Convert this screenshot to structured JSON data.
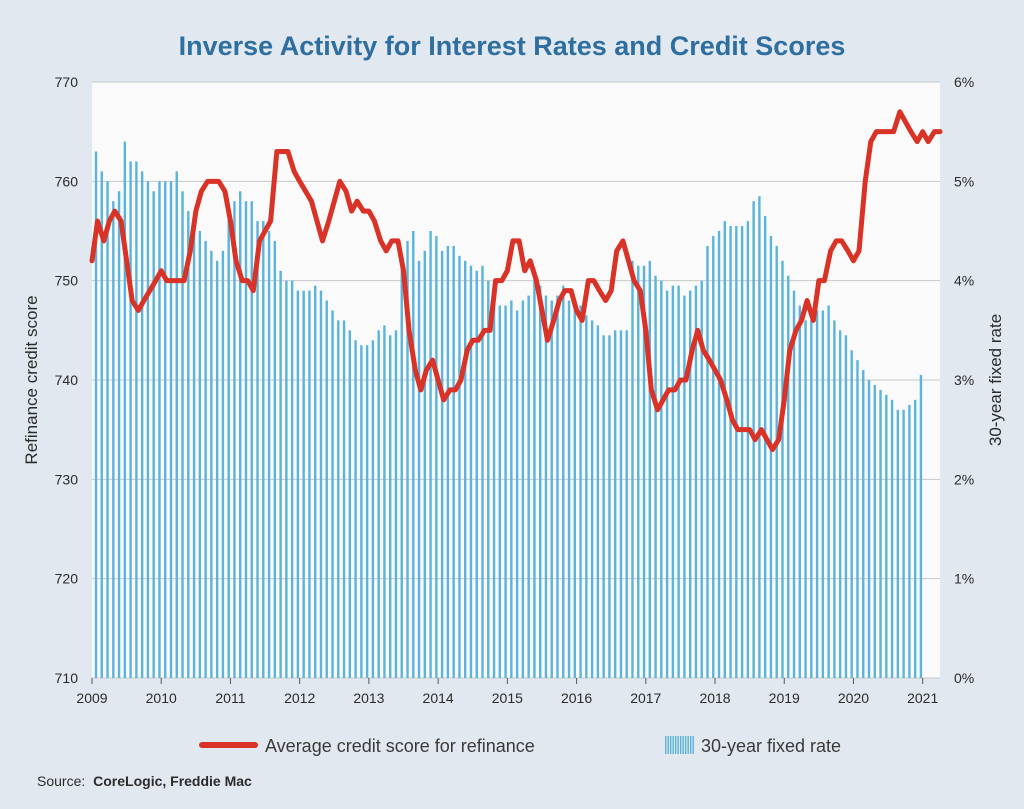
{
  "colors": {
    "background": "#e2e8f0",
    "plot_background": "#fafafa",
    "title": "#2e6fa0",
    "bar": "#5ab4dc",
    "line": "#d93226",
    "grid": "#c8c8c8"
  },
  "source": {
    "label": "Source:",
    "value": "CoreLogic, Freddie Mac"
  },
  "legend": [
    {
      "key": "line",
      "label": "Average credit score for refinance"
    },
    {
      "key": "bar",
      "label": "30-year fixed rate"
    }
  ],
  "chart_data": {
    "type": "bar",
    "title": "Inverse Activity for Interest Rates and Credit Scores",
    "xlabel": "",
    "ylabel": "Refinance credit score",
    "y2label": "30-year fixed rate",
    "ylim": [
      710,
      770
    ],
    "y_ticks": [
      710,
      720,
      730,
      740,
      750,
      760,
      770
    ],
    "y2lim": [
      0,
      6
    ],
    "y2_ticks": [
      0,
      1,
      2,
      3,
      4,
      5,
      6
    ],
    "y2_tick_labels": [
      "0%",
      "1%",
      "2%",
      "3%",
      "4%",
      "5%",
      "6%"
    ],
    "x_ticks": [
      2009,
      2010,
      2011,
      2012,
      2013,
      2014,
      2015,
      2016,
      2017,
      2018,
      2019,
      2020,
      2021
    ],
    "x_range": [
      2009.0,
      2021.25
    ],
    "grid": true,
    "legend_position": "bottom",
    "series": [
      {
        "name": "30-year fixed rate",
        "type": "bar",
        "axis": "right",
        "unit": "%",
        "start": "2009-01",
        "frequency": "monthly",
        "values": [
          5.3,
          5.1,
          5.0,
          4.8,
          4.9,
          5.4,
          5.2,
          5.2,
          5.1,
          5.0,
          4.9,
          5.0,
          5.0,
          5.0,
          5.1,
          4.9,
          4.7,
          4.6,
          4.5,
          4.4,
          4.3,
          4.2,
          4.3,
          4.7,
          4.8,
          4.9,
          4.8,
          4.8,
          4.6,
          4.6,
          4.5,
          4.4,
          4.1,
          4.0,
          4.0,
          3.9,
          3.9,
          3.9,
          3.95,
          3.9,
          3.8,
          3.7,
          3.6,
          3.6,
          3.5,
          3.4,
          3.35,
          3.35,
          3.4,
          3.5,
          3.55,
          3.45,
          3.5,
          4.2,
          4.4,
          4.5,
          4.2,
          4.3,
          4.5,
          4.45,
          4.3,
          4.35,
          4.35,
          4.25,
          4.2,
          4.15,
          4.1,
          4.15,
          4.0,
          3.9,
          3.75,
          3.75,
          3.8,
          3.7,
          3.8,
          3.85,
          4.05,
          3.95,
          3.85,
          3.8,
          3.85,
          3.95,
          3.8,
          3.7,
          3.75,
          3.65,
          3.6,
          3.55,
          3.45,
          3.45,
          3.5,
          3.5,
          3.5,
          4.2,
          4.15,
          4.15,
          4.2,
          4.05,
          4.0,
          3.9,
          3.95,
          3.95,
          3.85,
          3.9,
          3.95,
          4.0,
          4.35,
          4.45,
          4.5,
          4.6,
          4.55,
          4.55,
          4.55,
          4.6,
          4.8,
          4.85,
          4.65,
          4.45,
          4.35,
          4.2,
          4.05,
          3.9,
          3.75,
          3.6,
          3.6,
          3.7,
          3.7,
          3.75,
          3.6,
          3.5,
          3.45,
          3.3,
          3.2,
          3.1,
          3.0,
          2.95,
          2.9,
          2.85,
          2.8,
          2.7,
          2.7,
          2.75,
          2.8,
          3.05
        ]
      },
      {
        "name": "Average credit score for refinance",
        "type": "line",
        "axis": "left",
        "points": [
          [
            2009.0,
            752
          ],
          [
            2009.08,
            756
          ],
          [
            2009.17,
            754
          ],
          [
            2009.25,
            756
          ],
          [
            2009.33,
            757
          ],
          [
            2009.42,
            756
          ],
          [
            2009.5,
            752
          ],
          [
            2009.58,
            748
          ],
          [
            2009.67,
            747
          ],
          [
            2009.75,
            748
          ],
          [
            2009.92,
            750
          ],
          [
            2010.0,
            751
          ],
          [
            2010.08,
            750
          ],
          [
            2010.33,
            750
          ],
          [
            2010.42,
            753
          ],
          [
            2010.5,
            757
          ],
          [
            2010.58,
            759
          ],
          [
            2010.67,
            760
          ],
          [
            2010.83,
            760
          ],
          [
            2010.92,
            759
          ],
          [
            2011.0,
            756
          ],
          [
            2011.08,
            752
          ],
          [
            2011.17,
            750
          ],
          [
            2011.25,
            750
          ],
          [
            2011.33,
            749
          ],
          [
            2011.42,
            754
          ],
          [
            2011.5,
            755
          ],
          [
            2011.58,
            756
          ],
          [
            2011.67,
            763
          ],
          [
            2011.83,
            763
          ],
          [
            2011.92,
            761
          ],
          [
            2012.0,
            760
          ],
          [
            2012.17,
            758
          ],
          [
            2012.25,
            756
          ],
          [
            2012.33,
            754
          ],
          [
            2012.42,
            756
          ],
          [
            2012.58,
            760
          ],
          [
            2012.67,
            759
          ],
          [
            2012.75,
            757
          ],
          [
            2012.83,
            758
          ],
          [
            2012.92,
            757
          ],
          [
            2013.0,
            757
          ],
          [
            2013.08,
            756
          ],
          [
            2013.17,
            754
          ],
          [
            2013.25,
            753
          ],
          [
            2013.33,
            754
          ],
          [
            2013.42,
            754
          ],
          [
            2013.5,
            751
          ],
          [
            2013.58,
            745
          ],
          [
            2013.67,
            741
          ],
          [
            2013.75,
            739
          ],
          [
            2013.83,
            741
          ],
          [
            2013.92,
            742
          ],
          [
            2014.0,
            740
          ],
          [
            2014.08,
            738
          ],
          [
            2014.17,
            739
          ],
          [
            2014.25,
            739
          ],
          [
            2014.33,
            740
          ],
          [
            2014.42,
            743
          ],
          [
            2014.5,
            744
          ],
          [
            2014.58,
            744
          ],
          [
            2014.67,
            745
          ],
          [
            2014.75,
            745
          ],
          [
            2014.83,
            750
          ],
          [
            2014.92,
            750
          ],
          [
            2015.0,
            751
          ],
          [
            2015.08,
            754
          ],
          [
            2015.17,
            754
          ],
          [
            2015.25,
            751
          ],
          [
            2015.33,
            752
          ],
          [
            2015.42,
            750
          ],
          [
            2015.5,
            747
          ],
          [
            2015.58,
            744
          ],
          [
            2015.67,
            746
          ],
          [
            2015.75,
            748
          ],
          [
            2015.83,
            749
          ],
          [
            2015.92,
            749
          ],
          [
            2016.0,
            747
          ],
          [
            2016.08,
            746
          ],
          [
            2016.17,
            750
          ],
          [
            2016.25,
            750
          ],
          [
            2016.33,
            749
          ],
          [
            2016.42,
            748
          ],
          [
            2016.5,
            749
          ],
          [
            2016.58,
            753
          ],
          [
            2016.67,
            754
          ],
          [
            2016.75,
            752
          ],
          [
            2016.83,
            750
          ],
          [
            2016.92,
            749
          ],
          [
            2017.0,
            745
          ],
          [
            2017.08,
            739
          ],
          [
            2017.17,
            737
          ],
          [
            2017.25,
            738
          ],
          [
            2017.33,
            739
          ],
          [
            2017.42,
            739
          ],
          [
            2017.5,
            740
          ],
          [
            2017.58,
            740
          ],
          [
            2017.67,
            743
          ],
          [
            2017.75,
            745
          ],
          [
            2017.83,
            743
          ],
          [
            2017.92,
            742
          ],
          [
            2018.0,
            741
          ],
          [
            2018.08,
            740
          ],
          [
            2018.17,
            738
          ],
          [
            2018.25,
            736
          ],
          [
            2018.33,
            735
          ],
          [
            2018.5,
            735
          ],
          [
            2018.58,
            734
          ],
          [
            2018.67,
            735
          ],
          [
            2018.75,
            734
          ],
          [
            2018.83,
            733
          ],
          [
            2018.92,
            734
          ],
          [
            2019.0,
            738
          ],
          [
            2019.08,
            743
          ],
          [
            2019.17,
            745
          ],
          [
            2019.25,
            746
          ],
          [
            2019.33,
            748
          ],
          [
            2019.42,
            746
          ],
          [
            2019.5,
            750
          ],
          [
            2019.58,
            750
          ],
          [
            2019.67,
            753
          ],
          [
            2019.75,
            754
          ],
          [
            2019.83,
            754
          ],
          [
            2019.92,
            753
          ],
          [
            2020.0,
            752
          ],
          [
            2020.08,
            753
          ],
          [
            2020.17,
            760
          ],
          [
            2020.25,
            764
          ],
          [
            2020.33,
            765
          ],
          [
            2020.58,
            765
          ],
          [
            2020.67,
            767
          ],
          [
            2020.75,
            766
          ],
          [
            2020.83,
            765
          ],
          [
            2020.92,
            764
          ],
          [
            2021.0,
            765
          ],
          [
            2021.08,
            764
          ],
          [
            2021.17,
            765
          ],
          [
            2021.25,
            765
          ]
        ]
      }
    ]
  }
}
